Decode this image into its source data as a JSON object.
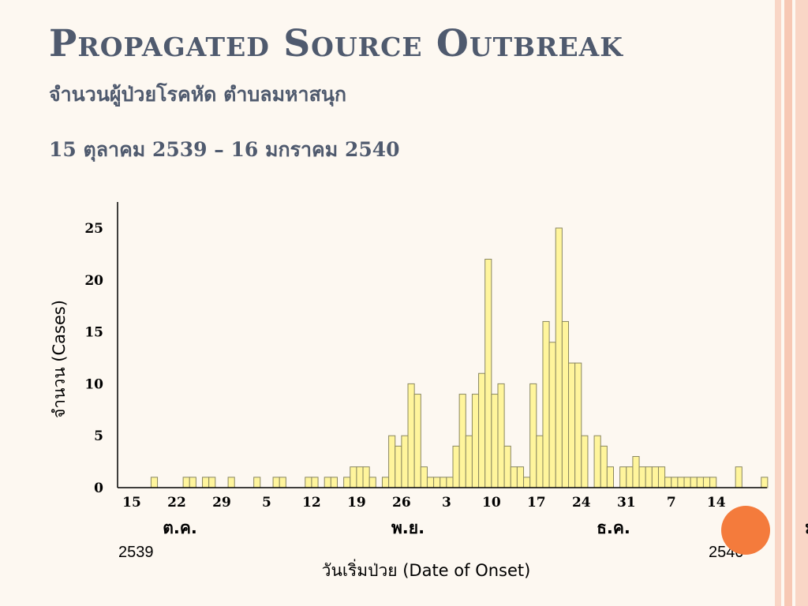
{
  "colors": {
    "bar_fill": "#fff59c",
    "bar_stroke": "#8a8760",
    "title": "#4f5a6e",
    "accent_dot": "#f47b3c",
    "stripe_1": "#f7c8b4",
    "stripe_2": "#f9d6c6"
  },
  "slide": {
    "title": "Propagated Source Outbreak",
    "subtitle_line1": "จำนวนผู้ป่วยโรคหัด ตำบลมหาสนุก",
    "subtitle_line2": "15 ตุลาคม 2539 – 16 มกราคม 2540"
  },
  "chart_data": {
    "type": "bar",
    "ylabel": "จำนวน (Cases)",
    "xlabel": "วันเริ่มป่วย (Date of Onset)",
    "ylim": [
      0,
      27
    ],
    "y_ticks": [
      0,
      5,
      10,
      15,
      20,
      25
    ],
    "x_tick_labels": [
      "15",
      "22",
      "29",
      "5",
      "12",
      "19",
      "26",
      "3",
      "10",
      "17",
      "24",
      "31",
      "7",
      "14"
    ],
    "month_labels": [
      "ต.ค.",
      "พ.ย.",
      "ธ.ค.",
      "ม.ค."
    ],
    "year_labels": [
      "2539",
      "2540"
    ],
    "grid": false,
    "values": [
      0,
      0,
      0,
      1,
      0,
      0,
      0,
      0,
      1,
      1,
      0,
      1,
      1,
      0,
      0,
      1,
      0,
      0,
      0,
      1,
      0,
      0,
      1,
      1,
      0,
      0,
      0,
      1,
      1,
      0,
      1,
      1,
      0,
      1,
      2,
      2,
      2,
      1,
      0,
      1,
      5,
      4,
      5,
      10,
      9,
      2,
      1,
      1,
      1,
      1,
      4,
      9,
      5,
      9,
      11,
      22,
      9,
      10,
      4,
      2,
      2,
      1,
      10,
      5,
      16,
      14,
      25,
      16,
      12,
      12,
      5,
      0,
      5,
      4,
      2,
      0,
      2,
      2,
      3,
      2,
      2,
      2,
      2,
      1,
      1,
      1,
      1,
      1,
      1,
      1,
      1,
      0,
      0,
      0,
      2,
      0,
      0,
      0,
      1
    ]
  }
}
